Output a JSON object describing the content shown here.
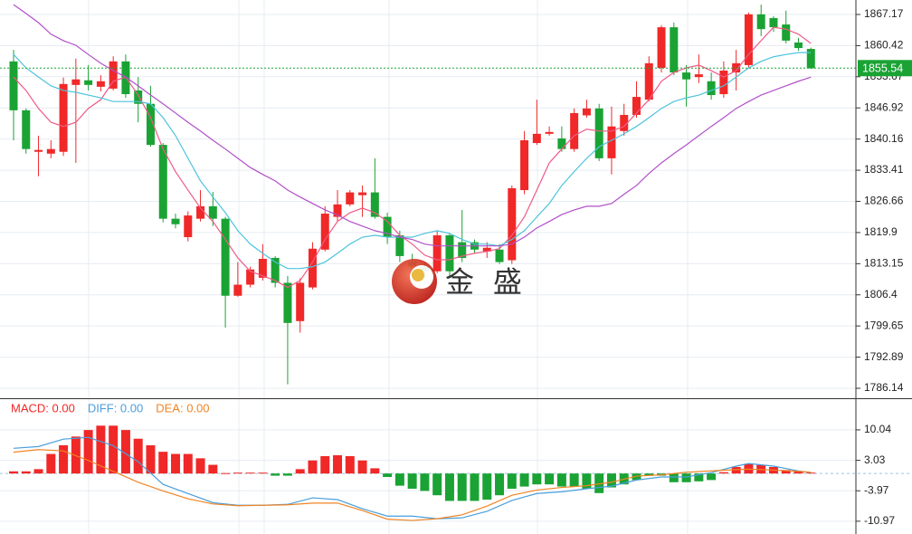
{
  "chart_data": [
    {
      "type": "candlestick",
      "open": [
        1857.0,
        1846.4,
        1837.4,
        1837.0,
        1837.4,
        1851.9,
        1852.9,
        1851.5,
        1851.1,
        1857.0,
        1850.7,
        1847.8,
        1838.9,
        1822.9,
        1818.9,
        1822.9,
        1825.6,
        1822.9,
        1806.2,
        1808.6,
        1810.1,
        1814.4,
        1809.0,
        1800.7,
        1808.0,
        1816.2,
        1823.3,
        1826.0,
        1828.0,
        1828.6,
        1823.3,
        1819.3,
        1813.5,
        1812.5,
        1811.5,
        1819.3,
        1817.8,
        1817.8,
        1815.8,
        1816.2,
        1813.9,
        1829.1,
        1839.3,
        1841.3,
        1840.3,
        1838.0,
        1845.3,
        1846.8,
        1836.0,
        1841.9,
        1845.4,
        1848.7,
        1855.6,
        1864.4,
        1854.6,
        1853.6,
        1852.7,
        1849.9,
        1854.6,
        1856.2,
        1867.2,
        1866.4,
        1865.0,
        1861.1,
        1859.7
      ],
      "high": [
        1859.5,
        1846.8,
        1840.9,
        1839.9,
        1853.5,
        1857.6,
        1856.2,
        1854.0,
        1858.1,
        1858.5,
        1853.6,
        1851.7,
        1839.3,
        1824.0,
        1824.5,
        1829.1,
        1828.7,
        1823.3,
        1813.5,
        1812.5,
        1817.4,
        1814.8,
        1810.5,
        1810.0,
        1817.8,
        1825.6,
        1829.1,
        1829.1,
        1830.1,
        1836.0,
        1824.2,
        1820.3,
        1815.3,
        1813.5,
        1820.3,
        1819.7,
        1824.8,
        1818.4,
        1817.8,
        1817.4,
        1830.1,
        1841.9,
        1848.7,
        1842.9,
        1842.9,
        1846.8,
        1848.7,
        1847.8,
        1847.2,
        1847.8,
        1852.7,
        1858.1,
        1864.8,
        1865.4,
        1856.2,
        1858.5,
        1854.6,
        1857.0,
        1859.5,
        1867.6,
        1869.3,
        1866.8,
        1868.0,
        1862.1,
        1860.0
      ],
      "low": [
        1839.9,
        1837.0,
        1832.1,
        1836.0,
        1836.5,
        1835.0,
        1850.7,
        1850.5,
        1850.7,
        1849.1,
        1843.8,
        1838.5,
        1822.1,
        1820.8,
        1818.0,
        1822.3,
        1821.3,
        1799.3,
        1806.0,
        1808.0,
        1809.5,
        1808.0,
        1787.0,
        1798.2,
        1807.6,
        1815.8,
        1822.3,
        1825.6,
        1823.3,
        1822.9,
        1817.4,
        1813.5,
        1810.6,
        1810.0,
        1811.1,
        1810.5,
        1813.5,
        1815.4,
        1814.4,
        1813.1,
        1813.1,
        1828.2,
        1838.9,
        1840.9,
        1837.4,
        1837.4,
        1844.8,
        1835.4,
        1832.5,
        1840.9,
        1844.8,
        1848.3,
        1854.6,
        1854.0,
        1847.2,
        1852.3,
        1848.7,
        1849.1,
        1850.7,
        1855.6,
        1862.5,
        1863.4,
        1860.9,
        1859.3,
        1855.4
      ],
      "close": [
        1846.4,
        1838.0,
        1837.8,
        1838.0,
        1852.1,
        1853.1,
        1851.9,
        1852.7,
        1857.0,
        1849.9,
        1847.8,
        1838.9,
        1822.9,
        1821.7,
        1823.6,
        1825.6,
        1822.9,
        1806.2,
        1808.6,
        1811.9,
        1814.2,
        1809.0,
        1800.3,
        1809.0,
        1816.4,
        1824.0,
        1826.0,
        1828.6,
        1828.6,
        1823.3,
        1819.0,
        1814.8,
        1812.5,
        1811.5,
        1819.3,
        1811.5,
        1814.4,
        1816.2,
        1816.6,
        1813.5,
        1829.5,
        1839.9,
        1841.3,
        1841.7,
        1838.0,
        1845.8,
        1846.8,
        1836.0,
        1842.9,
        1845.4,
        1849.3,
        1856.6,
        1864.4,
        1854.6,
        1853.1,
        1854.2,
        1849.7,
        1855.0,
        1856.6,
        1867.2,
        1864.0,
        1864.4,
        1861.5,
        1859.9,
        1855.5
      ],
      "up_color": "#f02828",
      "down_color": "#1aa334",
      "lines": [
        {
          "color": "#ef5a86",
          "values": [
            1853.6,
            1850.7,
            1846.8,
            1843.8,
            1842.9,
            1843.8,
            1846.8,
            1848.7,
            1852.7,
            1853.6,
            1849.7,
            1844.8,
            1838.0,
            1833.1,
            1829.1,
            1825.2,
            1822.3,
            1818.4,
            1814.4,
            1811.5,
            1810.5,
            1809.5,
            1808.0,
            1809.5,
            1813.5,
            1818.4,
            1822.3,
            1824.2,
            1825.2,
            1824.2,
            1822.3,
            1819.3,
            1817.4,
            1815.0,
            1814.0,
            1814.0,
            1814.8,
            1815.4,
            1815.8,
            1816.4,
            1819.3,
            1823.3,
            1829.1,
            1835.0,
            1838.0,
            1840.9,
            1842.3,
            1841.9,
            1841.9,
            1842.9,
            1845.8,
            1848.7,
            1852.7,
            1854.6,
            1855.6,
            1856.2,
            1855.0,
            1853.6,
            1855.0,
            1858.5,
            1861.5,
            1864.4,
            1864.0,
            1862.9,
            1860.9
          ]
        },
        {
          "color": "#4cc3dc",
          "values": [
            1858.5,
            1855.6,
            1853.6,
            1851.7,
            1850.7,
            1850.3,
            1849.7,
            1849.1,
            1848.3,
            1848.3,
            1848.3,
            1847.8,
            1844.8,
            1840.9,
            1836.0,
            1831.1,
            1827.6,
            1824.2,
            1820.3,
            1817.4,
            1815.4,
            1813.5,
            1812.1,
            1812.1,
            1812.5,
            1813.5,
            1815.4,
            1817.4,
            1818.9,
            1819.3,
            1818.9,
            1818.9,
            1818.9,
            1819.7,
            1820.3,
            1819.7,
            1818.4,
            1817.4,
            1817.4,
            1817.0,
            1818.4,
            1820.3,
            1823.3,
            1826.2,
            1830.1,
            1833.1,
            1836.0,
            1838.5,
            1839.9,
            1841.3,
            1842.9,
            1844.8,
            1846.8,
            1848.3,
            1849.1,
            1849.7,
            1850.7,
            1851.7,
            1853.6,
            1855.6,
            1857.0,
            1858.0,
            1858.5,
            1858.9,
            1858.9
          ]
        },
        {
          "color": "#b150c9",
          "values": [
            1869.3,
            1867.4,
            1865.4,
            1862.9,
            1861.5,
            1860.5,
            1858.5,
            1856.6,
            1855.0,
            1853.6,
            1851.7,
            1849.7,
            1847.8,
            1845.8,
            1843.8,
            1841.9,
            1839.9,
            1838.0,
            1836.0,
            1834.0,
            1832.5,
            1831.1,
            1829.1,
            1827.6,
            1826.2,
            1824.8,
            1823.7,
            1822.3,
            1821.3,
            1820.3,
            1819.7,
            1818.9,
            1818.4,
            1817.4,
            1817.0,
            1817.0,
            1817.0,
            1817.0,
            1817.0,
            1817.0,
            1817.4,
            1818.9,
            1820.9,
            1822.3,
            1823.8,
            1824.8,
            1825.6,
            1825.6,
            1826.2,
            1828.2,
            1830.1,
            1832.7,
            1835.0,
            1837.0,
            1838.9,
            1840.9,
            1842.9,
            1844.8,
            1846.8,
            1848.3,
            1849.7,
            1850.7,
            1851.7,
            1852.7,
            1853.6
          ]
        }
      ],
      "ylim": [
        1783.98,
        1870.31
      ],
      "yticks": [
        1867.17,
        1860.42,
        1853.67,
        1846.92,
        1840.16,
        1833.41,
        1826.66,
        1819.9,
        1813.15,
        1806.4,
        1799.65,
        1792.89,
        1786.14
      ],
      "grid": true,
      "last_price": 1855.54,
      "last_price_color": "#1aa334",
      "watermark": "金 盛"
    },
    {
      "type": "macd",
      "up_color": "#f02828",
      "down_color": "#1aa334",
      "series": [
        {
          "name": "MACD: 0.00",
          "style": "bar",
          "color": "#f02828",
          "values": [
            0.5,
            0.5,
            1,
            4.5,
            6.5,
            8.5,
            10,
            11,
            11,
            10,
            8,
            6.5,
            5,
            4.5,
            4.5,
            3.5,
            2,
            0.1,
            0.2,
            0.2,
            0.2,
            -0.5,
            -0.5,
            1,
            3,
            4,
            4.2,
            4,
            3,
            1.2,
            -0.8,
            -2.8,
            -3.5,
            -4,
            -5,
            -6.3,
            -6.3,
            -6.3,
            -6,
            -5,
            -3.5,
            -3,
            -2.5,
            -2.5,
            -3,
            -3,
            -3.5,
            -4.5,
            -3.2,
            -2.5,
            -1.5,
            -0.5,
            -0.5,
            -2,
            -2,
            -1.8,
            -1.5,
            0.3,
            1.5,
            2.2,
            2,
            1.5,
            0.8,
            0.5,
            0.2
          ]
        },
        {
          "name": "DIFF: 0.00",
          "style": "line",
          "color": "#4a9fdc",
          "x": [
            0,
            2,
            4,
            6,
            8,
            10,
            12,
            14,
            16,
            18,
            20,
            22,
            24,
            26,
            28,
            30,
            32,
            34,
            36,
            38,
            40,
            42,
            44,
            46,
            48,
            50,
            52,
            54,
            56,
            58,
            59,
            61,
            63,
            64
          ],
          "values": [
            5.8,
            6.2,
            7.9,
            8.3,
            6.4,
            2.7,
            -2.5,
            -4.6,
            -6.7,
            -7.3,
            -7.3,
            -7.1,
            -5.6,
            -6.0,
            -8.1,
            -9.8,
            -9.8,
            -10.4,
            -10.2,
            -8.7,
            -6.2,
            -4.6,
            -4.2,
            -3.5,
            -2.9,
            -1.5,
            -0.8,
            -0.8,
            0.2,
            1.7,
            2.3,
            1.7,
            0.6,
            0.2
          ]
        },
        {
          "name": "DEA: 0.00",
          "style": "line",
          "color": "#f08424",
          "x": [
            0,
            2,
            4,
            6,
            8,
            10,
            12,
            14,
            16,
            18,
            20,
            22,
            24,
            26,
            28,
            30,
            32,
            34,
            36,
            38,
            40,
            42,
            44,
            46,
            48,
            50,
            52,
            54,
            56,
            58,
            59,
            61,
            63,
            64
          ],
          "values": [
            4.9,
            5.5,
            5.2,
            3.0,
            0.5,
            -2.0,
            -4.0,
            -5.8,
            -7.0,
            -7.4,
            -7.3,
            -7.2,
            -6.8,
            -6.8,
            -8.5,
            -10.5,
            -10.8,
            -10.4,
            -9.5,
            -7.5,
            -5.0,
            -3.8,
            -3.2,
            -2.8,
            -2.0,
            -0.6,
            -0.3,
            0.3,
            0.6,
            0.9,
            1.0,
            0.8,
            0.5,
            0.3
          ]
        }
      ],
      "ylim": [
        -13.7,
        17.1
      ],
      "yticks": [
        10.04,
        3.03,
        -3.97,
        -10.97
      ],
      "grid": true
    }
  ]
}
